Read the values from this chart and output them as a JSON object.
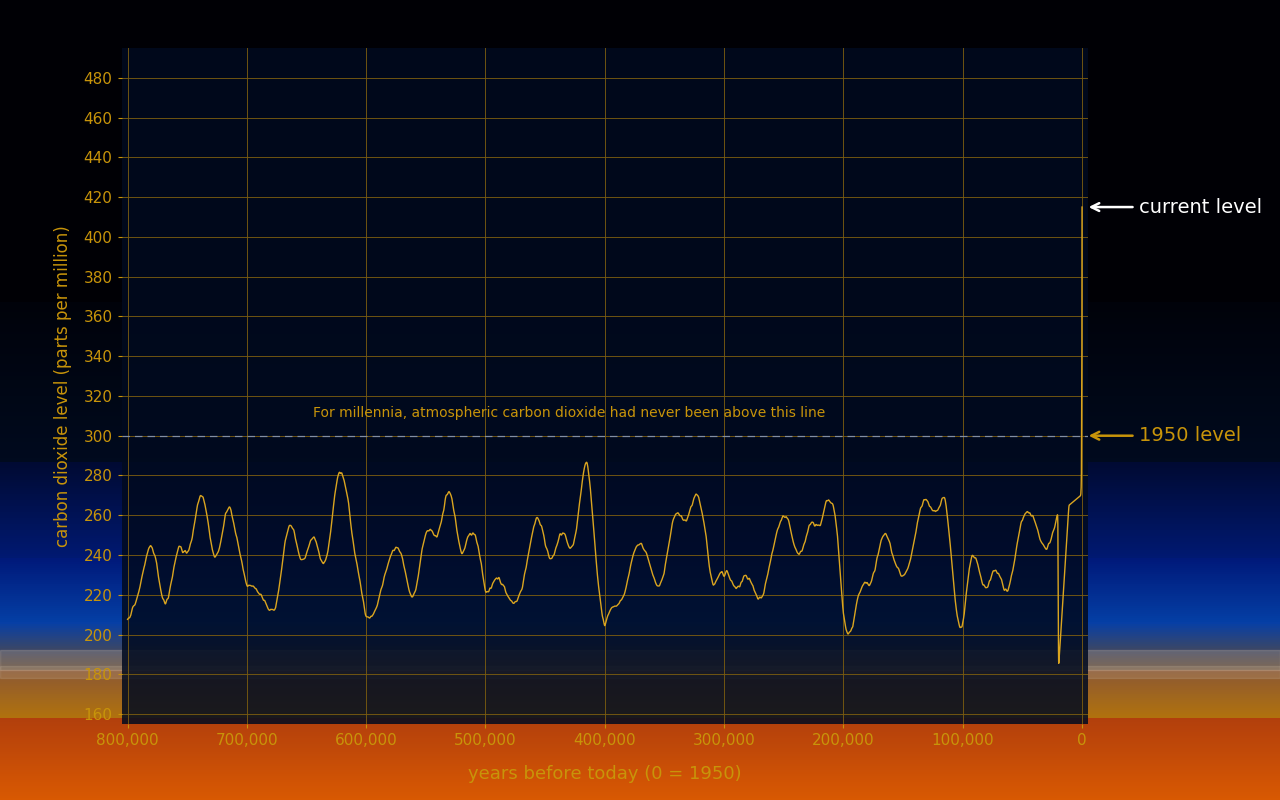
{
  "xlabel": "years before today (0 = 1950)",
  "ylabel": "carbon dioxide level (parts per million)",
  "line_color": "#DAA520",
  "grid_color": "#7A5C10",
  "axis_color": "#DAA520",
  "text_color": "#C8940A",
  "ref_line_color": "#8899BB",
  "ylim": [
    155,
    495
  ],
  "xlim": [
    -5000,
    805000
  ],
  "yticks": [
    160,
    180,
    200,
    220,
    240,
    260,
    280,
    300,
    320,
    340,
    360,
    380,
    400,
    420,
    440,
    460,
    480
  ],
  "xticks": [
    0,
    100000,
    200000,
    300000,
    400000,
    500000,
    600000,
    700000,
    800000
  ],
  "xtick_labels": [
    "0",
    "100,000",
    "200,000",
    "300,000",
    "400,000",
    "500,000",
    "600,000",
    "700,000",
    "800,000"
  ],
  "reference_level": 300,
  "reference_label": "For millennia, atmospheric carbon dioxide had never been above this line",
  "current_label": "←  current level",
  "level_1950_label": "←  1950 level",
  "current_level_y": 415,
  "level_1950_y": 300
}
